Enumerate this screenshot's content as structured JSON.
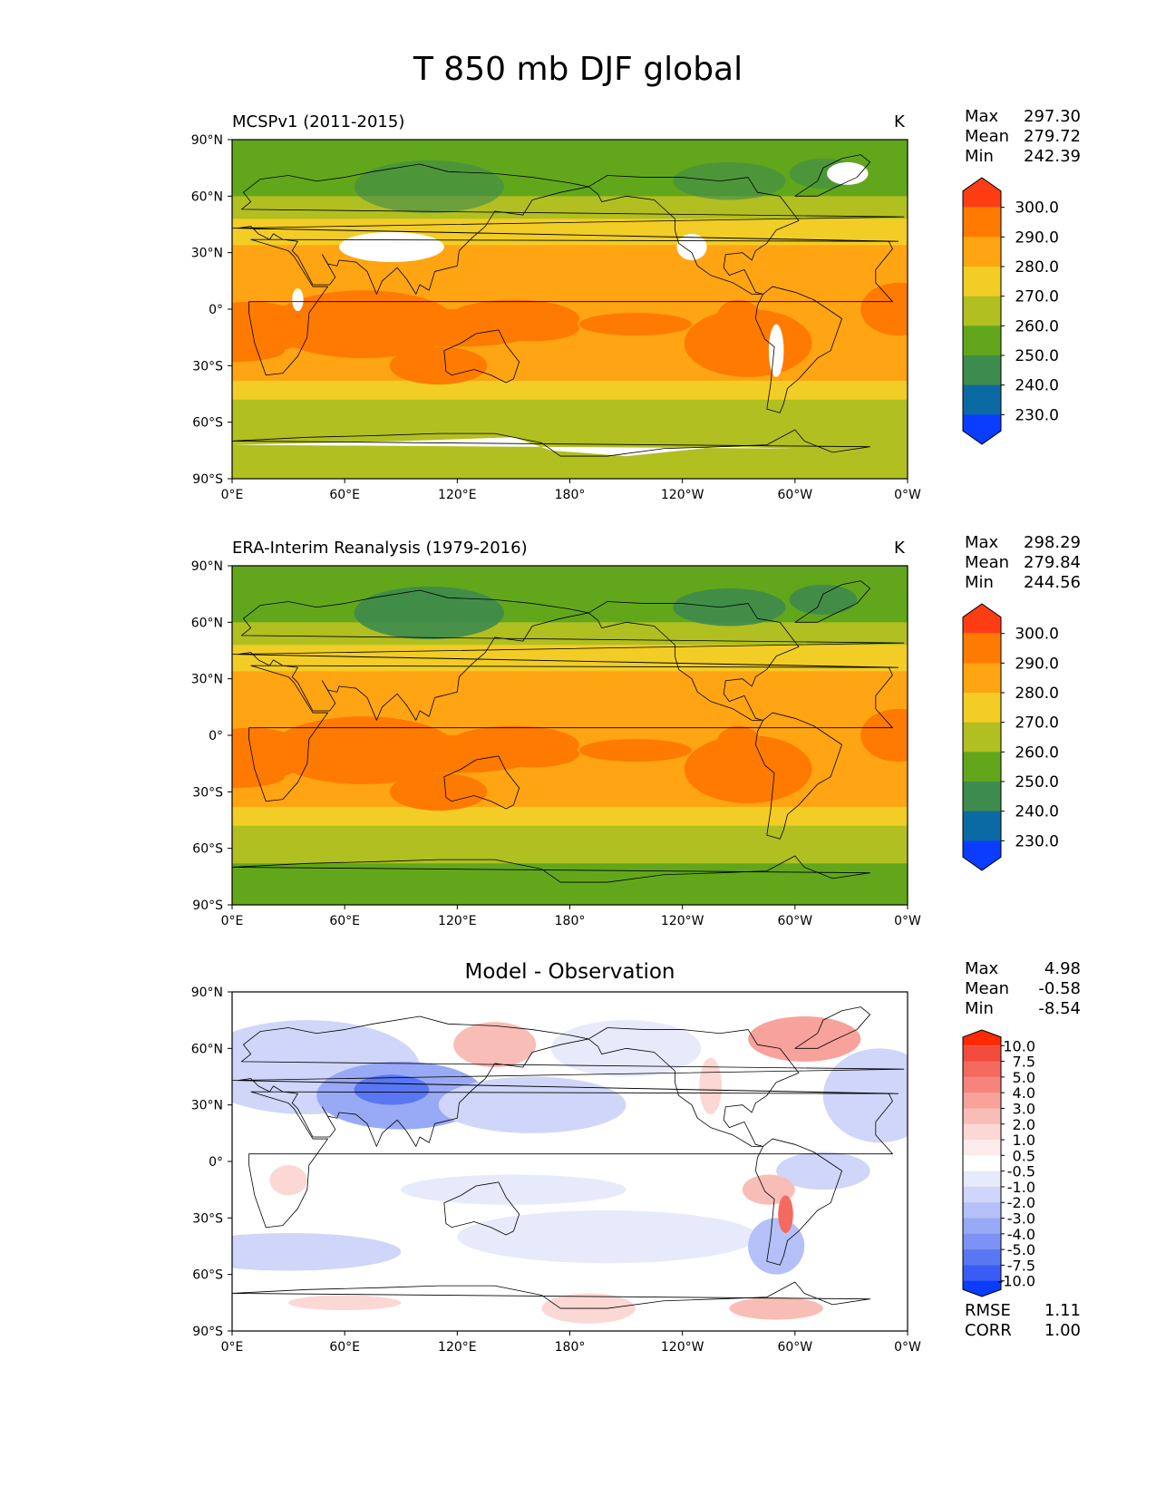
{
  "title": "T 850 mb DJF global",
  "panels": [
    {
      "title": "MCSPv1 (2011-2015)",
      "units": "K",
      "stats": {
        "max_label": "Max",
        "max": "297.30",
        "mean_label": "Mean",
        "mean": "279.72",
        "min_label": "Min",
        "min": "242.39"
      },
      "colorbar": {
        "labels": [
          "300.0",
          "290.0",
          "280.0",
          "270.0",
          "260.0",
          "250.0",
          "240.0",
          "230.0"
        ],
        "colors": [
          "#ff3d14",
          "#ff7a00",
          "#ffa412",
          "#f2cd26",
          "#b1bf21",
          "#62a71b",
          "#3e8b4e",
          "#0b6aa4",
          "#0a3dff"
        ]
      }
    },
    {
      "title": "ERA-Interim Reanalysis (1979-2016)",
      "units": "K",
      "stats": {
        "max_label": "Max",
        "max": "298.29",
        "mean_label": "Mean",
        "mean": "279.84",
        "min_label": "Min",
        "min": "244.56"
      },
      "colorbar": {
        "labels": [
          "300.0",
          "290.0",
          "280.0",
          "270.0",
          "260.0",
          "250.0",
          "240.0",
          "230.0"
        ],
        "colors": [
          "#ff3d14",
          "#ff7a00",
          "#ffa412",
          "#f2cd26",
          "#b1bf21",
          "#62a71b",
          "#3e8b4e",
          "#0b6aa4",
          "#0a3dff"
        ]
      }
    },
    {
      "title": "Model - Observation",
      "units": "",
      "stats": {
        "max_label": "Max",
        "max": "4.98",
        "mean_label": "Mean",
        "mean": "-0.58",
        "min_label": "Min",
        "min": "-8.54"
      },
      "metrics": {
        "rmse_label": "RMSE",
        "rmse": "1.11",
        "corr_label": "CORR",
        "corr": "1.00"
      },
      "colorbar": {
        "labels": [
          "10.0",
          "7.5",
          "5.0",
          "4.0",
          "3.0",
          "2.0",
          "1.0",
          "0.5",
          "-0.5",
          "-1.0",
          "-2.0",
          "-3.0",
          "-4.0",
          "-5.0",
          "-7.5",
          "-10.0"
        ],
        "colors": [
          "#ff2a00",
          "#f34a3e",
          "#f56a5e",
          "#f5857c",
          "#f7a29b",
          "#f9bdb7",
          "#fbd8d4",
          "#fcebea",
          "#ffffff",
          "#e6eafb",
          "#cfd6f9",
          "#b4c0f7",
          "#98a9f6",
          "#7c92f5",
          "#5a77f3",
          "#3a5cf5",
          "#0a3dff"
        ]
      }
    }
  ],
  "axes": {
    "lat_ticks": [
      "90°N",
      "60°N",
      "30°N",
      "0°",
      "30°S",
      "60°S",
      "90°S"
    ],
    "lon_ticks": [
      "0°E",
      "60°E",
      "120°E",
      "180°",
      "120°W",
      "60°W",
      "0°W"
    ]
  }
}
